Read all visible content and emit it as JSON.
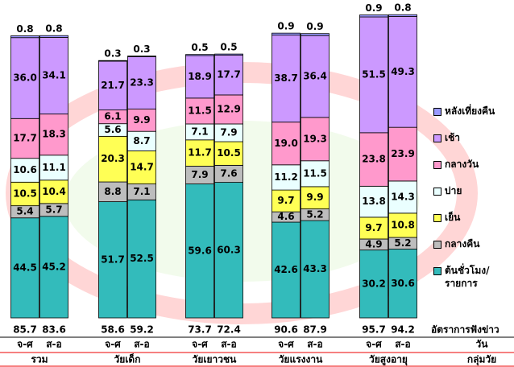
{
  "chart_data": {
    "type": "stacked_bar",
    "categories": [
      "จ-ศ",
      "ส-อ",
      "จ-ศ",
      "ส-อ",
      "จ-ศ",
      "ส-อ",
      "จ-ศ",
      "ส-อ",
      "จ-ศ",
      "ส-อ"
    ],
    "groups": [
      "รวม",
      "วัยเด็ก",
      "วัยเยาวชน",
      "วัยแรงงาน",
      "วัยสูงอายุ"
    ],
    "ratings": [
      85.7,
      83.6,
      58.6,
      59.2,
      73.7,
      72.4,
      90.6,
      87.9,
      95.7,
      94.2
    ],
    "row_labels": {
      "rating": "อัตราการฟังข่าว",
      "day": "วัน",
      "group": "กลุ่มวัย"
    },
    "ylim": [
      0,
      140
    ],
    "series": [
      {
        "name": "ต้นชั่วโมง/\nรายการ",
        "color": "#33bbbb",
        "values": [
          44.5,
          45.2,
          51.7,
          52.5,
          59.6,
          60.3,
          42.6,
          43.3,
          30.2,
          30.6
        ]
      },
      {
        "name": "กลางคืน",
        "color": "#bdbdbd",
        "values": [
          5.4,
          5.7,
          8.8,
          7.1,
          7.9,
          7.6,
          4.6,
          5.2,
          4.9,
          5.2
        ]
      },
      {
        "name": "เย็น",
        "color": "#ffff55",
        "values": [
          10.5,
          10.4,
          20.3,
          14.7,
          11.7,
          10.5,
          9.7,
          9.9,
          9.7,
          10.8
        ]
      },
      {
        "name": "บ่าย",
        "color": "#eaffff",
        "values": [
          10.6,
          11.1,
          5.6,
          8.7,
          7.1,
          7.9,
          11.2,
          11.5,
          13.8,
          14.3
        ]
      },
      {
        "name": "กลางวัน",
        "color": "#ff99cc",
        "values": [
          17.7,
          18.3,
          6.1,
          9.9,
          11.5,
          12.9,
          19.0,
          19.3,
          23.8,
          23.9
        ],
        "value_labels": [
          "17.7",
          "18.3",
          "6.1",
          "9.9",
          "11.5",
          "12.9",
          "19.0",
          "19.3",
          "23.8",
          "23.9"
        ]
      },
      {
        "name": "เช้า",
        "color": "#cc99ff",
        "values": [
          36.0,
          34.1,
          21.7,
          23.3,
          18.9,
          17.7,
          38.7,
          36.4,
          51.5,
          49.3
        ],
        "value_labels": [
          "36.0",
          "34.1",
          "21.7",
          "23.3",
          "18.9",
          "17.7",
          "38.7",
          "36.4",
          "51.5",
          "49.3"
        ]
      },
      {
        "name": "หลังเที่ยงคืน",
        "color": "#9999ff",
        "values": [
          0.8,
          0.8,
          0.3,
          0.3,
          0.5,
          0.5,
          0.9,
          0.9,
          0.9,
          0.8
        ]
      }
    ]
  }
}
